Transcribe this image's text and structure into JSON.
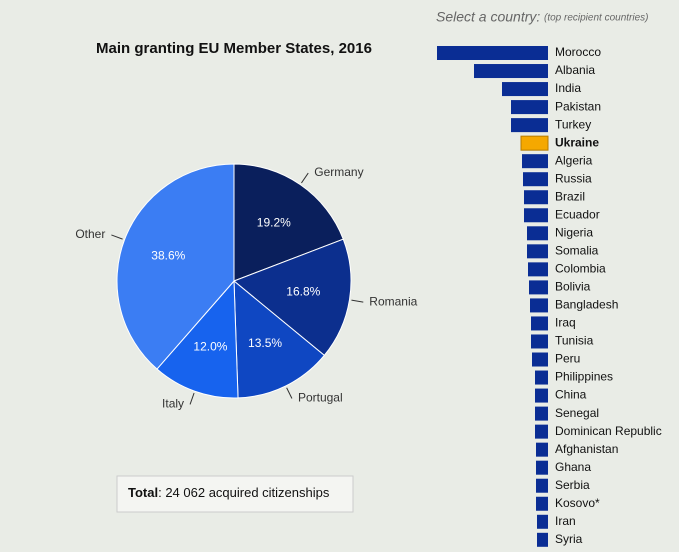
{
  "header": {
    "prompt": "Select a country:",
    "note": "(top recipient countries)"
  },
  "total": {
    "label": "Total",
    "text": ": 24 062 acquired citizenships"
  },
  "chart_data": [
    {
      "type": "pie",
      "title": "Main granting EU Member States, 2016",
      "categories": [
        "Germany",
        "Romania",
        "Portugal",
        "Italy",
        "Other"
      ],
      "values": [
        19.2,
        16.8,
        13.5,
        12.0,
        38.6
      ],
      "value_labels": [
        "19.2%",
        "16.8%",
        "13.5%",
        "12.0%",
        "38.6%"
      ],
      "colors": [
        "#0a1f5c",
        "#0c2f8e",
        "#0f47c2",
        "#1763ee",
        "#3b7df3"
      ]
    },
    {
      "type": "hbar",
      "categories": [
        "Morocco",
        "Albania",
        "India",
        "Pakistan",
        "Turkey",
        "Ukraine",
        "Algeria",
        "Russia",
        "Brazil",
        "Ecuador",
        "Nigeria",
        "Somalia",
        "Colombia",
        "Bolivia",
        "Bangladesh",
        "Iraq",
        "Tunisia",
        "Peru",
        "Philippines",
        "China",
        "Senegal",
        "Dominican Republic",
        "Afghanistan",
        "Ghana",
        "Serbia",
        "Kosovo*",
        "Iran",
        "Syria"
      ],
      "values": [
        111,
        74,
        46,
        37,
        37,
        27,
        26,
        25,
        24,
        24,
        21,
        21,
        20,
        19,
        18,
        17,
        17,
        16,
        13,
        13,
        13,
        13,
        12,
        12,
        12,
        12,
        11,
        11
      ],
      "color": "#0a2d94",
      "highlight_index": 5,
      "highlight_color": "#f5a800"
    }
  ]
}
